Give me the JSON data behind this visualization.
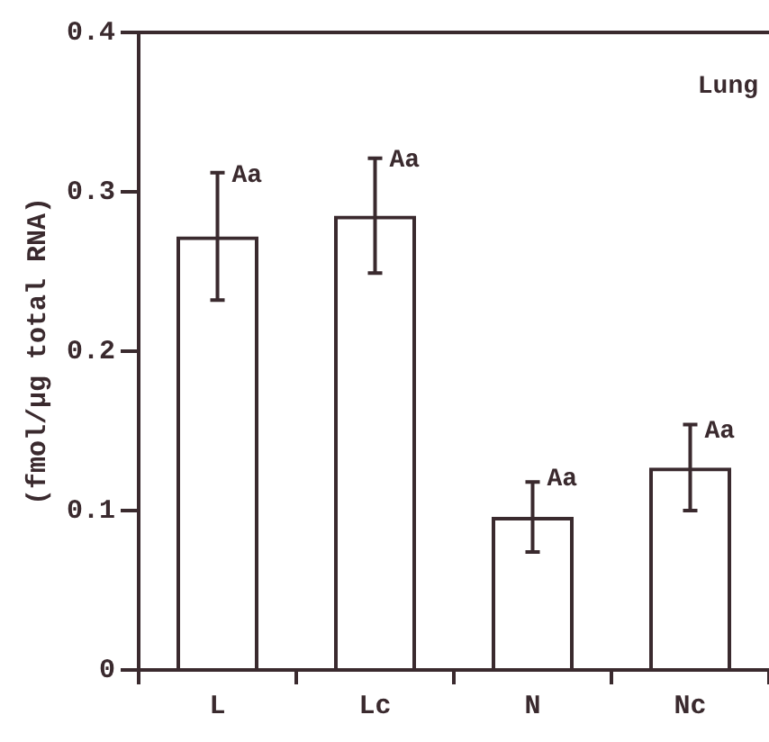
{
  "chart_data": {
    "type": "bar",
    "ylabel": "(fmol/µg total RNA)",
    "categories": [
      "L",
      "Lc",
      "N",
      "Nc"
    ],
    "values": [
      0.272,
      0.285,
      0.096,
      0.127
    ],
    "errors": [
      0.04,
      0.036,
      0.022,
      0.027
    ],
    "color": "#3a2a2e",
    "ylim": [
      0,
      0.4
    ],
    "yticks": [
      0,
      0.1,
      0.2,
      0.3,
      0.4
    ],
    "grid": false,
    "legend": false,
    "annotations": [
      {
        "text": "Aa",
        "x": "L",
        "y": 0.31
      },
      {
        "text": "Aa",
        "x": "Lc",
        "y": 0.32
      },
      {
        "text": "Aa",
        "x": "N",
        "y": 0.12
      },
      {
        "text": "Aa",
        "x": "Nc",
        "y": 0.15
      },
      "Lung"
    ]
  }
}
